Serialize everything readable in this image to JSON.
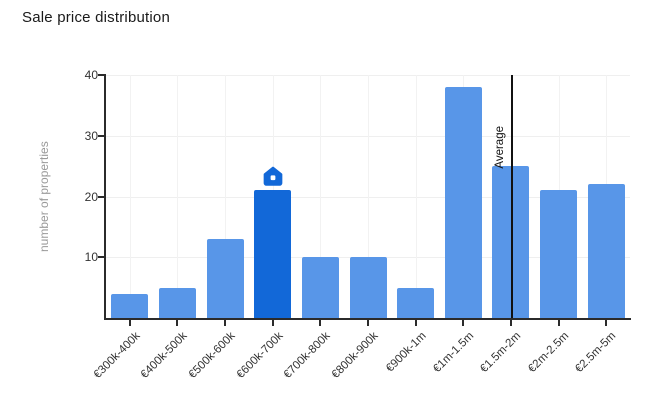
{
  "title": "Sale price distribution",
  "chart_data": {
    "type": "bar",
    "title": "Sale price distribution",
    "xlabel": "",
    "ylabel": "number of properties",
    "categories": [
      "€300k-400k",
      "€400k-500k",
      "€500k-600k",
      "€600k-700k",
      "€700k-800k",
      "€800k-900k",
      "€900k-1m",
      "€1m-1.5m",
      "€1.5m-2m",
      "€2m-2.5m",
      "€2.5m-5m"
    ],
    "values": [
      4,
      5,
      13,
      21,
      10,
      10,
      5,
      38,
      25,
      21,
      22
    ],
    "highlighted_index": 3,
    "highlighted_category": "€600k-700k",
    "highlight_marker": "house-icon",
    "yticks": [
      10,
      20,
      30,
      40
    ],
    "ylim": [
      0,
      40
    ],
    "grid": true,
    "legend": false,
    "bar_color": "#5896e8",
    "highlight_color": "#1268d8",
    "axis_color": "#2b2b2b",
    "grid_color": "#efefef",
    "annotations": [
      {
        "type": "vline",
        "label": "Average",
        "x_fraction": 0.775,
        "color": "#111111"
      }
    ]
  }
}
